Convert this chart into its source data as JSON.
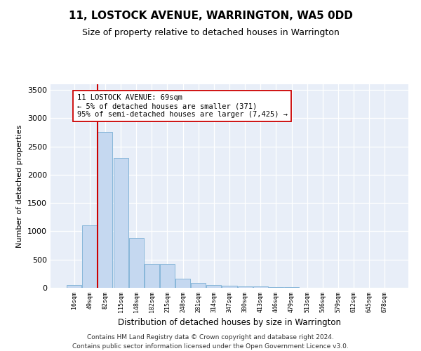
{
  "title": "11, LOSTOCK AVENUE, WARRINGTON, WA5 0DD",
  "subtitle": "Size of property relative to detached houses in Warrington",
  "xlabel": "Distribution of detached houses by size in Warrington",
  "ylabel": "Number of detached properties",
  "bar_color": "#c5d8f0",
  "bar_edge_color": "#7aafd4",
  "background_color": "#e8eef8",
  "fig_background": "#ffffff",
  "grid_color": "#ffffff",
  "categories": [
    "16sqm",
    "49sqm",
    "82sqm",
    "115sqm",
    "148sqm",
    "182sqm",
    "215sqm",
    "248sqm",
    "281sqm",
    "314sqm",
    "347sqm",
    "380sqm",
    "413sqm",
    "446sqm",
    "479sqm",
    "513sqm",
    "546sqm",
    "579sqm",
    "612sqm",
    "645sqm",
    "678sqm"
  ],
  "values": [
    50,
    1100,
    2750,
    2300,
    880,
    420,
    420,
    160,
    85,
    55,
    40,
    28,
    22,
    14,
    7,
    5,
    3,
    2,
    2,
    1,
    1
  ],
  "property_line_color": "#cc0000",
  "property_line_x": 1.5,
  "annotation_text": "11 LOSTOCK AVENUE: 69sqm\n← 5% of detached houses are smaller (371)\n95% of semi-detached houses are larger (7,425) →",
  "annotation_box_facecolor": "#ffffff",
  "annotation_box_edgecolor": "#cc0000",
  "ylim": [
    0,
    3600
  ],
  "yticks": [
    0,
    500,
    1000,
    1500,
    2000,
    2500,
    3000,
    3500
  ],
  "footnote1": "Contains HM Land Registry data © Crown copyright and database right 2024.",
  "footnote2": "Contains public sector information licensed under the Open Government Licence v3.0."
}
